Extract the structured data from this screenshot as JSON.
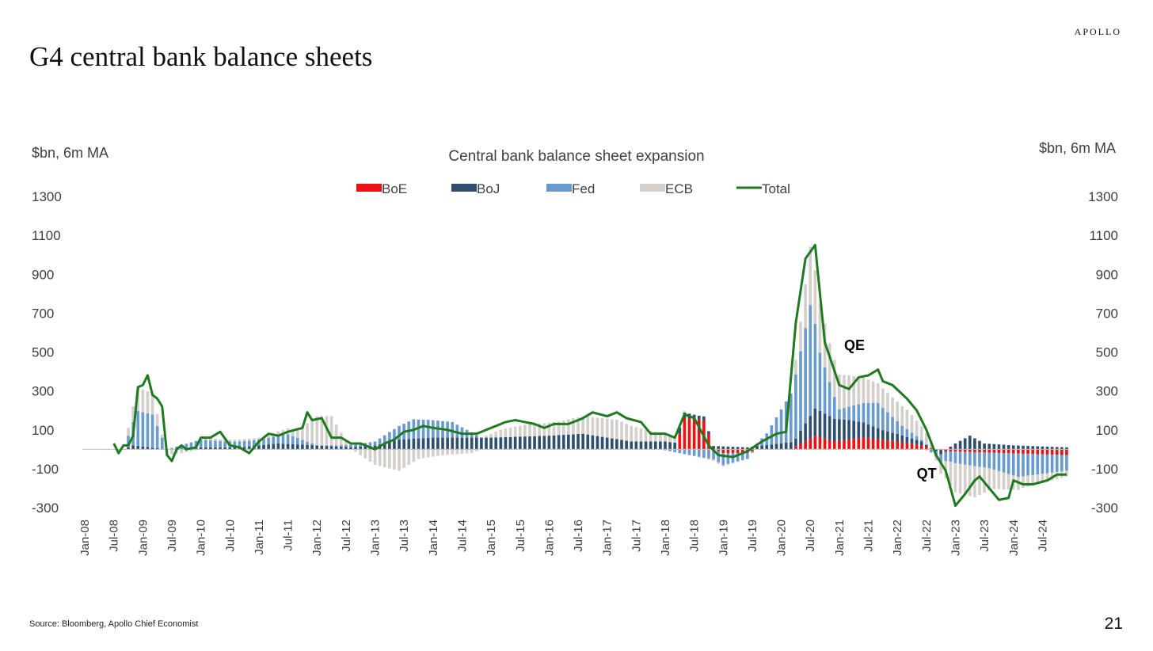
{
  "brand": "APOLLO",
  "slide_title": "G4 central bank balance sheets",
  "source": "Source: Bloomberg, Apollo Chief Economist",
  "page_number": "21",
  "colors": {
    "BoE": "#ee1111",
    "BoJ": "#2f4f70",
    "Fed": "#6a9bd0",
    "ECB": "#d4cfca",
    "Total": "#1f7a1f"
  },
  "chart_data": {
    "type": "bar",
    "stacked": true,
    "title": "Central bank balance sheet expansion",
    "ylabel_left": "$bn, 6m MA",
    "ylabel_right": "$bn, 6m MA",
    "ylim": [
      -300,
      1300
    ],
    "yticks": [
      "1300",
      "1100",
      "900",
      "700",
      "500",
      "300",
      "100",
      "-100",
      "-300"
    ],
    "ytick_values": [
      1300,
      1100,
      900,
      700,
      500,
      300,
      100,
      -100,
      -300
    ],
    "xtick_labels": [
      "Jan-08",
      "Jul-08",
      "Jan-09",
      "Jul-09",
      "Jan-10",
      "Jul-10",
      "Jan-11",
      "Jul-11",
      "Jan-12",
      "Jul-12",
      "Jan-13",
      "Jul-13",
      "Jan-14",
      "Jul-14",
      "Jan-15",
      "Jul-15",
      "Jan-16",
      "Jul-16",
      "Jan-17",
      "Jul-17",
      "Jan-18",
      "Jul-18",
      "Jan-19",
      "Jul-19",
      "Jan-20",
      "Jul-20",
      "Jan-21",
      "Jul-21",
      "Jan-22",
      "Jul-22",
      "Jan-23",
      "Jul-23",
      "Jan-24",
      "Jul-24"
    ],
    "x_start": "2008-01",
    "x_end": "2024-12",
    "grid": false,
    "legend_position": "top-center",
    "legend": [
      "BoE",
      "BoJ",
      "Fed",
      "ECB",
      "Total"
    ],
    "annotations": [
      {
        "text": "QE",
        "date": "2021-02",
        "value": 510
      },
      {
        "text": "QT",
        "date": "2022-05",
        "value": -150
      }
    ],
    "series_anchors": {
      "Total": [
        [
          "2008-01",
          0
        ],
        [
          "2008-06",
          0
        ],
        [
          "2008-07",
          30
        ],
        [
          "2008-08",
          -20
        ],
        [
          "2008-09",
          20
        ],
        [
          "2008-10",
          20
        ],
        [
          "2008-11",
          70
        ],
        [
          "2008-12",
          320
        ],
        [
          "2009-01",
          330
        ],
        [
          "2009-02",
          380
        ],
        [
          "2009-03",
          280
        ],
        [
          "2009-04",
          260
        ],
        [
          "2009-05",
          220
        ],
        [
          "2009-06",
          -30
        ],
        [
          "2009-07",
          -60
        ],
        [
          "2009-08",
          0
        ],
        [
          "2009-09",
          20
        ],
        [
          "2009-10",
          0
        ],
        [
          "2009-12",
          10
        ],
        [
          "2010-01",
          60
        ],
        [
          "2010-03",
          60
        ],
        [
          "2010-05",
          90
        ],
        [
          "2010-07",
          20
        ],
        [
          "2010-09",
          10
        ],
        [
          "2010-11",
          -20
        ],
        [
          "2011-01",
          40
        ],
        [
          "2011-03",
          80
        ],
        [
          "2011-05",
          70
        ],
        [
          "2011-07",
          90
        ],
        [
          "2011-10",
          110
        ],
        [
          "2011-11",
          190
        ],
        [
          "2011-12",
          150
        ],
        [
          "2012-02",
          160
        ],
        [
          "2012-04",
          60
        ],
        [
          "2012-06",
          60
        ],
        [
          "2012-08",
          30
        ],
        [
          "2012-10",
          30
        ],
        [
          "2013-01",
          0
        ],
        [
          "2013-03",
          30
        ],
        [
          "2013-05",
          50
        ],
        [
          "2013-07",
          90
        ],
        [
          "2013-09",
          100
        ],
        [
          "2013-11",
          120
        ],
        [
          "2014-01",
          110
        ],
        [
          "2014-04",
          100
        ],
        [
          "2014-07",
          80
        ],
        [
          "2014-10",
          80
        ],
        [
          "2015-01",
          110
        ],
        [
          "2015-04",
          140
        ],
        [
          "2015-06",
          150
        ],
        [
          "2015-08",
          140
        ],
        [
          "2015-10",
          130
        ],
        [
          "2015-12",
          110
        ],
        [
          "2016-02",
          130
        ],
        [
          "2016-05",
          130
        ],
        [
          "2016-08",
          160
        ],
        [
          "2016-10",
          190
        ],
        [
          "2017-01",
          170
        ],
        [
          "2017-03",
          190
        ],
        [
          "2017-05",
          160
        ],
        [
          "2017-08",
          140
        ],
        [
          "2017-10",
          80
        ],
        [
          "2018-01",
          80
        ],
        [
          "2018-03",
          60
        ],
        [
          "2018-05",
          180
        ],
        [
          "2018-07",
          160
        ],
        [
          "2018-10",
          20
        ],
        [
          "2018-12",
          -30
        ],
        [
          "2019-03",
          -40
        ],
        [
          "2019-06",
          -10
        ],
        [
          "2019-09",
          40
        ],
        [
          "2019-12",
          80
        ],
        [
          "2020-02",
          90
        ],
        [
          "2020-04",
          650
        ],
        [
          "2020-06",
          980
        ],
        [
          "2020-08",
          1050
        ],
        [
          "2020-10",
          550
        ],
        [
          "2021-01",
          330
        ],
        [
          "2021-03",
          310
        ],
        [
          "2021-05",
          370
        ],
        [
          "2021-07",
          380
        ],
        [
          "2021-09",
          410
        ],
        [
          "2021-10",
          350
        ],
        [
          "2021-12",
          330
        ],
        [
          "2022-03",
          260
        ],
        [
          "2022-05",
          200
        ],
        [
          "2022-07",
          100
        ],
        [
          "2022-09",
          -30
        ],
        [
          "2022-11",
          -110
        ],
        [
          "2023-01",
          -290
        ],
        [
          "2023-03",
          -230
        ],
        [
          "2023-05",
          -160
        ],
        [
          "2023-06",
          -140
        ],
        [
          "2023-08",
          -200
        ],
        [
          "2023-10",
          -260
        ],
        [
          "2023-12",
          -250
        ],
        [
          "2024-01",
          -160
        ],
        [
          "2024-03",
          -180
        ],
        [
          "2024-05",
          -180
        ],
        [
          "2024-08",
          -160
        ],
        [
          "2024-10",
          -130
        ],
        [
          "2024-12",
          -130
        ]
      ],
      "BoE": [
        [
          "2008-01",
          0
        ],
        [
          "2018-03",
          0
        ],
        [
          "2018-05",
          160
        ],
        [
          "2018-09",
          150
        ],
        [
          "2018-11",
          0
        ],
        [
          "2019-01",
          -20
        ],
        [
          "2019-06",
          -20
        ],
        [
          "2019-08",
          0
        ],
        [
          "2020-03",
          0
        ],
        [
          "2020-05",
          30
        ],
        [
          "2020-08",
          70
        ],
        [
          "2020-12",
          40
        ],
        [
          "2021-06",
          60
        ],
        [
          "2022-01",
          40
        ],
        [
          "2022-06",
          20
        ],
        [
          "2022-09",
          0
        ],
        [
          "2022-11",
          -10
        ],
        [
          "2024-12",
          -30
        ]
      ],
      "BoJ": [
        [
          "2008-01",
          0
        ],
        [
          "2008-09",
          0
        ],
        [
          "2008-11",
          20
        ],
        [
          "2009-06",
          0
        ],
        [
          "2010-01",
          10
        ],
        [
          "2010-09",
          10
        ],
        [
          "2011-05",
          30
        ],
        [
          "2012-01",
          20
        ],
        [
          "2012-08",
          10
        ],
        [
          "2013-01",
          20
        ],
        [
          "2013-06",
          50
        ],
        [
          "2014-01",
          60
        ],
        [
          "2015-01",
          60
        ],
        [
          "2016-01",
          70
        ],
        [
          "2016-08",
          80
        ],
        [
          "2017-06",
          40
        ],
        [
          "2018-01",
          40
        ],
        [
          "2018-08",
          20
        ],
        [
          "2019-06",
          10
        ],
        [
          "2020-04",
          40
        ],
        [
          "2020-08",
          140
        ],
        [
          "2021-03",
          100
        ],
        [
          "2021-10",
          50
        ],
        [
          "2022-06",
          20
        ],
        [
          "2022-10",
          -20
        ],
        [
          "2023-01",
          30
        ],
        [
          "2023-04",
          70
        ],
        [
          "2023-07",
          30
        ],
        [
          "2024-01",
          20
        ],
        [
          "2024-12",
          10
        ]
      ],
      "Fed": [
        [
          "2008-01",
          0
        ],
        [
          "2008-09",
          0
        ],
        [
          "2008-12",
          180
        ],
        [
          "2009-03",
          170
        ],
        [
          "2009-06",
          0
        ],
        [
          "2010-01",
          40
        ],
        [
          "2010-06",
          30
        ],
        [
          "2011-02",
          30
        ],
        [
          "2011-07",
          50
        ],
        [
          "2012-01",
          0
        ],
        [
          "2013-01",
          20
        ],
        [
          "2013-05",
          60
        ],
        [
          "2013-09",
          100
        ],
        [
          "2014-05",
          80
        ],
        [
          "2014-11",
          0
        ],
        [
          "2015-12",
          0
        ],
        [
          "2017-12",
          0
        ],
        [
          "2018-06",
          -30
        ],
        [
          "2019-01",
          -60
        ],
        [
          "2019-06",
          -30
        ],
        [
          "2019-10",
          60
        ],
        [
          "2020-03",
          250
        ],
        [
          "2020-07",
          570
        ],
        [
          "2020-09",
          300
        ],
        [
          "2021-01",
          50
        ],
        [
          "2021-09",
          130
        ],
        [
          "2022-02",
          50
        ],
        [
          "2022-05",
          20
        ],
        [
          "2022-10",
          -40
        ],
        [
          "2023-01",
          -60
        ],
        [
          "2023-08",
          -80
        ],
        [
          "2024-02",
          -120
        ],
        [
          "2024-12",
          -80
        ]
      ],
      "ECB": [
        [
          "2008-01",
          0
        ],
        [
          "2008-09",
          0
        ],
        [
          "2008-12",
          120
        ],
        [
          "2009-03",
          110
        ],
        [
          "2009-06",
          -30
        ],
        [
          "2009-09",
          -20
        ],
        [
          "2010-03",
          10
        ],
        [
          "2011-03",
          10
        ],
        [
          "2011-09",
          40
        ],
        [
          "2012-01",
          150
        ],
        [
          "2012-04",
          150
        ],
        [
          "2012-07",
          20
        ],
        [
          "2013-01",
          -80
        ],
        [
          "2013-06",
          -110
        ],
        [
          "2013-10",
          -50
        ],
        [
          "2014-03",
          -30
        ],
        [
          "2014-09",
          -20
        ],
        [
          "2015-03",
          40
        ],
        [
          "2015-08",
          60
        ],
        [
          "2016-03",
          70
        ],
        [
          "2016-08",
          90
        ],
        [
          "2017-03",
          100
        ],
        [
          "2017-09",
          60
        ],
        [
          "2018-01",
          40
        ],
        [
          "2018-06",
          0
        ],
        [
          "2018-12",
          -10
        ],
        [
          "2019-06",
          0
        ],
        [
          "2020-03",
          0
        ],
        [
          "2020-07",
          300
        ],
        [
          "2020-11",
          200
        ],
        [
          "2021-03",
          160
        ],
        [
          "2021-09",
          100
        ],
        [
          "2022-03",
          100
        ],
        [
          "2022-07",
          60
        ],
        [
          "2022-10",
          -60
        ],
        [
          "2023-01",
          -150
        ],
        [
          "2023-05",
          -160
        ],
        [
          "2023-09",
          -100
        ],
        [
          "2024-03",
          -60
        ],
        [
          "2024-12",
          -30
        ]
      ]
    }
  }
}
